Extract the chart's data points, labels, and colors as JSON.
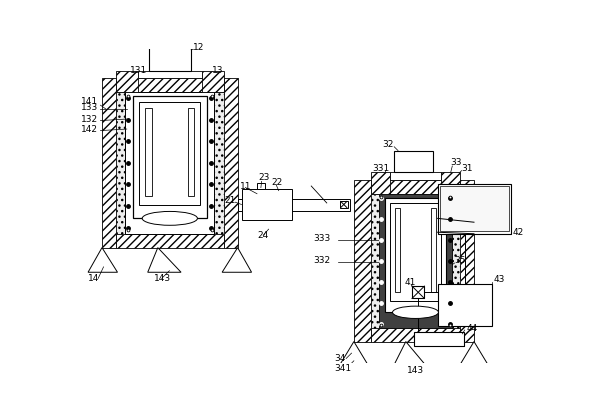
{
  "bg_color": "#ffffff",
  "line_color": "#000000",
  "figsize": [
    5.99,
    4.08
  ],
  "dpi": 100
}
